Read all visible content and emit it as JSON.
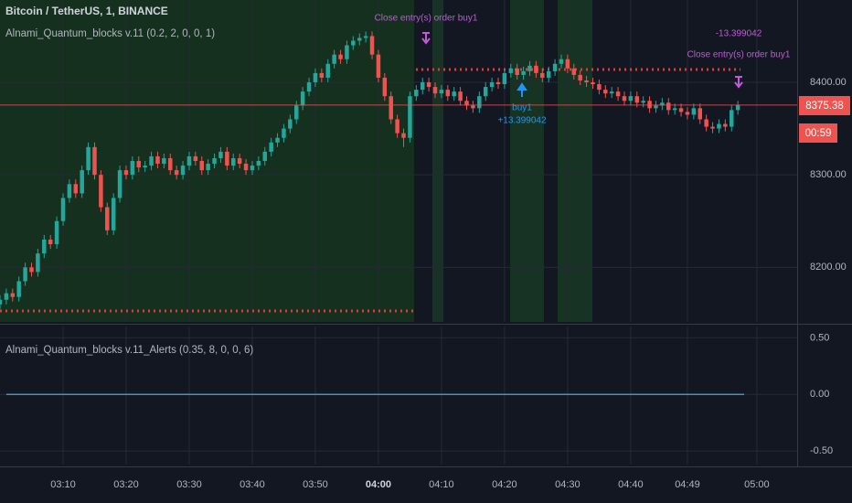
{
  "chart_data": [
    {
      "type": "candlestick",
      "title": "Bitcoin / TetherUS, 1, BINANCE",
      "subtitle": "Alnami_Quantum_blocks v.11 (0.2, 2, 0, 0, 1)",
      "annotations": [
        "Close entry(s) order buy1",
        "-13.399042",
        "Close entry(s) order buy1",
        "buy1",
        "+13.399042"
      ],
      "price_label": "8375.38",
      "countdown": "00:59",
      "up_color": "#26a69a",
      "down_color": "#ef5350",
      "x": [
        180,
        181,
        182,
        183,
        184,
        185,
        186,
        187,
        188,
        189,
        190,
        191,
        192,
        193,
        194,
        195,
        196,
        197,
        198,
        199,
        200,
        201,
        202,
        203,
        204,
        205,
        206,
        207,
        208,
        209,
        210,
        211,
        212,
        213,
        214,
        215,
        216,
        217,
        218,
        219,
        220,
        221,
        222,
        223,
        224,
        225,
        226,
        227,
        228,
        229,
        230,
        231,
        232,
        233,
        234,
        235,
        236,
        237,
        238,
        239,
        240,
        241,
        242,
        243,
        244,
        245,
        246,
        247,
        248,
        249,
        250,
        251,
        252,
        253,
        254,
        255,
        256,
        257,
        258,
        259,
        260,
        261,
        262,
        263,
        264,
        265,
        266,
        267,
        268,
        269,
        270,
        271,
        272,
        273,
        274,
        275,
        276,
        277,
        278,
        279,
        280,
        281,
        282,
        283,
        284,
        285,
        286,
        287,
        288,
        289,
        290,
        291,
        292,
        293,
        294,
        295,
        296,
        297
      ],
      "open": [
        8160,
        8165,
        8172,
        8168,
        8185,
        8200,
        8195,
        8215,
        8230,
        8225,
        8250,
        8275,
        8290,
        8280,
        8305,
        8330,
        8300,
        8265,
        8240,
        8275,
        8305,
        8300,
        8315,
        8308,
        8310,
        8320,
        8312,
        8318,
        8305,
        8300,
        8310,
        8320,
        8315,
        8305,
        8312,
        8318,
        8325,
        8310,
        8318,
        8312,
        8305,
        8310,
        8315,
        8325,
        8335,
        8340,
        8350,
        8360,
        8375,
        8390,
        8400,
        8410,
        8405,
        8420,
        8430,
        8425,
        8440,
        8445,
        8448,
        8450,
        8430,
        8405,
        8385,
        8360,
        8345,
        8340,
        8385,
        8392,
        8400,
        8395,
        8388,
        8392,
        8385,
        8390,
        8380,
        8375,
        8372,
        8385,
        8395,
        8400,
        8398,
        8410,
        8415,
        8408,
        8412,
        8418,
        8410,
        8405,
        8412,
        8420,
        8425,
        8415,
        8408,
        8402,
        8400,
        8398,
        8392,
        8388,
        8390,
        8385,
        8380,
        8385,
        8378,
        8380,
        8372,
        8375,
        8378,
        8370,
        8372,
        8368,
        8365,
        8372,
        8360,
        8352,
        8350,
        8355,
        8352,
        8370
      ],
      "high": [
        8170,
        8177,
        8177,
        8190,
        8205,
        8205,
        8220,
        8235,
        8235,
        8255,
        8280,
        8295,
        8295,
        8310,
        8335,
        8335,
        8305,
        8270,
        8280,
        8310,
        8310,
        8320,
        8320,
        8315,
        8325,
        8325,
        8323,
        8323,
        8310,
        8315,
        8325,
        8325,
        8320,
        8317,
        8323,
        8330,
        8330,
        8323,
        8323,
        8317,
        8315,
        8320,
        8330,
        8340,
        8345,
        8355,
        8365,
        8380,
        8395,
        8405,
        8415,
        8415,
        8425,
        8435,
        8435,
        8445,
        8450,
        8453,
        8455,
        8455,
        8435,
        8410,
        8390,
        8365,
        8350,
        8390,
        8397,
        8405,
        8405,
        8400,
        8397,
        8397,
        8395,
        8395,
        8385,
        8380,
        8390,
        8400,
        8405,
        8405,
        8415,
        8420,
        8420,
        8417,
        8423,
        8423,
        8415,
        8417,
        8425,
        8430,
        8430,
        8420,
        8413,
        8407,
        8405,
        8403,
        8397,
        8395,
        8395,
        8390,
        8390,
        8390,
        8385,
        8385,
        8380,
        8383,
        8383,
        8377,
        8377,
        8373,
        8377,
        8377,
        8365,
        8357,
        8360,
        8360,
        8375,
        8380
      ],
      "low": [
        8155,
        8160,
        8163,
        8163,
        8180,
        8190,
        8190,
        8210,
        8220,
        8220,
        8245,
        8270,
        8275,
        8275,
        8300,
        8295,
        8260,
        8235,
        8235,
        8270,
        8295,
        8295,
        8303,
        8303,
        8305,
        8307,
        8307,
        8300,
        8295,
        8295,
        8305,
        8310,
        8300,
        8300,
        8307,
        8313,
        8305,
        8305,
        8307,
        8300,
        8300,
        8305,
        8310,
        8320,
        8330,
        8335,
        8345,
        8355,
        8370,
        8385,
        8395,
        8400,
        8400,
        8415,
        8420,
        8420,
        8435,
        8440,
        8443,
        8425,
        8400,
        8380,
        8355,
        8340,
        8330,
        8335,
        8380,
        8387,
        8390,
        8383,
        8383,
        8380,
        8380,
        8375,
        8370,
        8367,
        8367,
        8380,
        8390,
        8393,
        8393,
        8405,
        8403,
        8403,
        8407,
        8405,
        8400,
        8400,
        8407,
        8415,
        8410,
        8403,
        8397,
        8395,
        8393,
        8387,
        8383,
        8383,
        8380,
        8375,
        8375,
        8373,
        8373,
        8367,
        8367,
        8370,
        8365,
        8365,
        8363,
        8360,
        8360,
        8355,
        8347,
        8345,
        8345,
        8347,
        8347,
        8365
      ],
      "close": [
        8165,
        8172,
        8168,
        8185,
        8200,
        8195,
        8215,
        8230,
        8225,
        8250,
        8275,
        8290,
        8280,
        8305,
        8330,
        8300,
        8265,
        8240,
        8275,
        8305,
        8300,
        8315,
        8308,
        8310,
        8320,
        8312,
        8318,
        8305,
        8300,
        8310,
        8320,
        8315,
        8305,
        8312,
        8318,
        8325,
        8310,
        8318,
        8312,
        8305,
        8310,
        8315,
        8325,
        8335,
        8340,
        8350,
        8360,
        8375,
        8390,
        8400,
        8410,
        8405,
        8420,
        8430,
        8425,
        8440,
        8445,
        8448,
        8450,
        8430,
        8405,
        8385,
        8360,
        8345,
        8340,
        8385,
        8392,
        8400,
        8395,
        8388,
        8392,
        8385,
        8390,
        8380,
        8375,
        8372,
        8385,
        8395,
        8400,
        8398,
        8410,
        8415,
        8408,
        8412,
        8418,
        8410,
        8405,
        8412,
        8420,
        8425,
        8415,
        8408,
        8402,
        8400,
        8398,
        8392,
        8388,
        8390,
        8385,
        8380,
        8385,
        8378,
        8380,
        8372,
        8375,
        8378,
        8370,
        8372,
        8368,
        8365,
        8372,
        8360,
        8352,
        8350,
        8355,
        8352,
        8370,
        8375.38
      ],
      "xlim": [
        180,
        306.4
      ],
      "ylim": [
        8141,
        8489
      ],
      "yticks": [
        {
          "value": 8200,
          "label": "8200.00"
        },
        {
          "value": 8300,
          "label": "8300.00"
        },
        {
          "value": 8400,
          "label": "8400.00"
        }
      ],
      "xticks": [
        {
          "value": 190,
          "label": "03:10"
        },
        {
          "value": 200,
          "label": "03:20"
        },
        {
          "value": 210,
          "label": "03:30"
        },
        {
          "value": 220,
          "label": "03:40"
        },
        {
          "value": 230,
          "label": "03:50"
        },
        {
          "value": 240,
          "label": "04:00"
        },
        {
          "value": 250,
          "label": "04:10"
        },
        {
          "value": 260,
          "label": "04:20"
        },
        {
          "value": 270,
          "label": "04:30"
        },
        {
          "value": 280,
          "label": "04:40"
        },
        {
          "value": 289,
          "label": "04:49"
        },
        {
          "value": 300,
          "label": "05:00"
        }
      ],
      "grid": true
    },
    {
      "type": "line",
      "title": "Alnami_Quantum_blocks v.11_Alerts (0.35, 8, 0, 0, 6)",
      "x": [
        181,
        298
      ],
      "values": [
        0,
        0
      ],
      "color": "#4a90b8",
      "xlim": [
        180,
        306.4
      ],
      "ylim": [
        -0.62,
        0.6
      ],
      "yticks": [
        {
          "value": 0.5,
          "label": "0.50"
        },
        {
          "value": 0,
          "label": "0.00"
        },
        {
          "value": -0.5,
          "label": "-0.50"
        }
      ],
      "grid": true
    }
  ]
}
